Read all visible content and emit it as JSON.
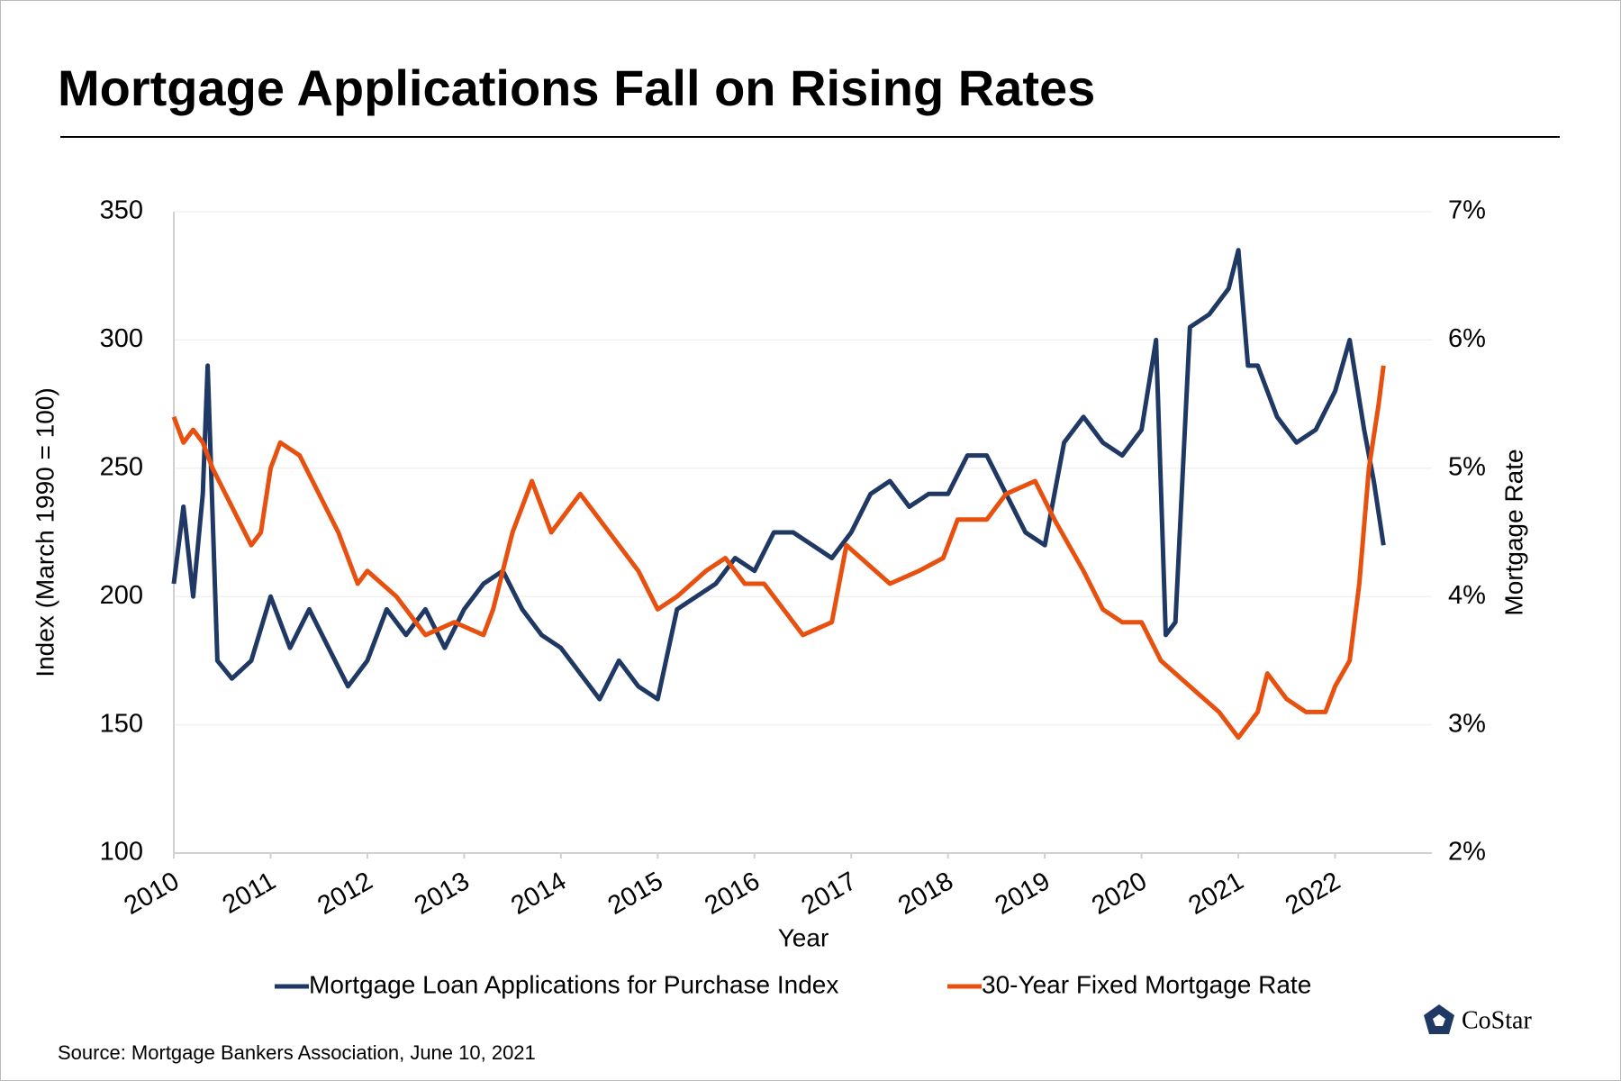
{
  "chart_data": {
    "type": "line",
    "title": "Mortgage Applications Fall on Rising Rates",
    "xlabel": "Year",
    "ylabel": "Index (March 1990 = 100)",
    "y2label": "Mortgage Rate",
    "source": "Source: Mortgage Bankers Association, June 10, 2021",
    "logo": "CoStar",
    "xlim": [
      2010,
      2023
    ],
    "xticks": [
      2010,
      2011,
      2012,
      2013,
      2014,
      2015,
      2016,
      2017,
      2018,
      2019,
      2020,
      2021,
      2022
    ],
    "ylim": [
      100,
      350
    ],
    "yticks": [
      100,
      150,
      200,
      250,
      300,
      350
    ],
    "y2lim": [
      2,
      7
    ],
    "y2ticks": [
      {
        "value": 2,
        "label": "2%"
      },
      {
        "value": 3,
        "label": "3%"
      },
      {
        "value": 4,
        "label": "4%"
      },
      {
        "value": 5,
        "label": "5%"
      },
      {
        "value": 6,
        "label": "6%"
      },
      {
        "value": 7,
        "label": "7%"
      }
    ],
    "grid": true,
    "legend": "bottom",
    "series": [
      {
        "name": "Mortgage Loan Applications for Purchase Index",
        "color": "#1f3864",
        "axis": "y",
        "x": [
          2010.0,
          2010.1,
          2010.2,
          2010.3,
          2010.35,
          2010.45,
          2010.6,
          2010.8,
          2011.0,
          2011.2,
          2011.4,
          2011.6,
          2011.8,
          2012.0,
          2012.2,
          2012.4,
          2012.6,
          2012.8,
          2013.0,
          2013.2,
          2013.4,
          2013.6,
          2013.8,
          2014.0,
          2014.2,
          2014.4,
          2014.6,
          2014.8,
          2015.0,
          2015.2,
          2015.4,
          2015.6,
          2015.8,
          2016.0,
          2016.2,
          2016.4,
          2016.6,
          2016.8,
          2017.0,
          2017.2,
          2017.4,
          2017.6,
          2017.8,
          2018.0,
          2018.2,
          2018.4,
          2018.6,
          2018.8,
          2019.0,
          2019.2,
          2019.4,
          2019.6,
          2019.8,
          2020.0,
          2020.15,
          2020.25,
          2020.35,
          2020.5,
          2020.7,
          2020.9,
          2021.0,
          2021.1,
          2021.2,
          2021.4,
          2021.6,
          2021.8,
          2022.0,
          2022.15,
          2022.3,
          2022.4,
          2022.5
        ],
        "values": [
          205,
          235,
          200,
          240,
          290,
          175,
          168,
          175,
          200,
          180,
          195,
          180,
          165,
          175,
          195,
          185,
          195,
          180,
          195,
          205,
          210,
          195,
          185,
          180,
          170,
          160,
          175,
          165,
          160,
          195,
          200,
          205,
          215,
          210,
          225,
          225,
          220,
          215,
          225,
          240,
          245,
          235,
          240,
          240,
          255,
          255,
          240,
          225,
          220,
          260,
          270,
          260,
          255,
          265,
          300,
          185,
          190,
          305,
          310,
          320,
          335,
          290,
          290,
          270,
          260,
          265,
          280,
          300,
          265,
          245,
          220
        ]
      },
      {
        "name": "30-Year Fixed Mortgage Rate",
        "color": "#e8500f",
        "axis": "y2",
        "x": [
          2010.0,
          2010.1,
          2010.2,
          2010.3,
          2010.4,
          2010.6,
          2010.8,
          2010.9,
          2011.0,
          2011.1,
          2011.3,
          2011.5,
          2011.7,
          2011.9,
          2012.0,
          2012.3,
          2012.6,
          2012.9,
          2013.2,
          2013.3,
          2013.5,
          2013.7,
          2013.9,
          2014.2,
          2014.4,
          2014.6,
          2014.8,
          2015.0,
          2015.2,
          2015.5,
          2015.7,
          2015.9,
          2016.1,
          2016.3,
          2016.5,
          2016.8,
          2016.95,
          2017.1,
          2017.4,
          2017.7,
          2017.95,
          2018.1,
          2018.4,
          2018.6,
          2018.9,
          2019.1,
          2019.4,
          2019.6,
          2019.8,
          2020.0,
          2020.2,
          2020.5,
          2020.8,
          2021.0,
          2021.2,
          2021.3,
          2021.5,
          2021.7,
          2021.9,
          2022.0,
          2022.15,
          2022.25,
          2022.35,
          2022.45,
          2022.5
        ],
        "values": [
          5.4,
          5.2,
          5.3,
          5.2,
          5.0,
          4.7,
          4.4,
          4.5,
          5.0,
          5.2,
          5.1,
          4.8,
          4.5,
          4.1,
          4.2,
          4.0,
          3.7,
          3.8,
          3.7,
          3.9,
          4.5,
          4.9,
          4.5,
          4.8,
          4.6,
          4.4,
          4.2,
          3.9,
          4.0,
          4.2,
          4.3,
          4.1,
          4.1,
          3.9,
          3.7,
          3.8,
          4.4,
          4.3,
          4.1,
          4.2,
          4.3,
          4.6,
          4.6,
          4.8,
          4.9,
          4.6,
          4.2,
          3.9,
          3.8,
          3.8,
          3.5,
          3.3,
          3.1,
          2.9,
          3.1,
          3.4,
          3.2,
          3.1,
          3.1,
          3.3,
          3.5,
          4.1,
          5.0,
          5.5,
          5.8
        ]
      }
    ]
  }
}
